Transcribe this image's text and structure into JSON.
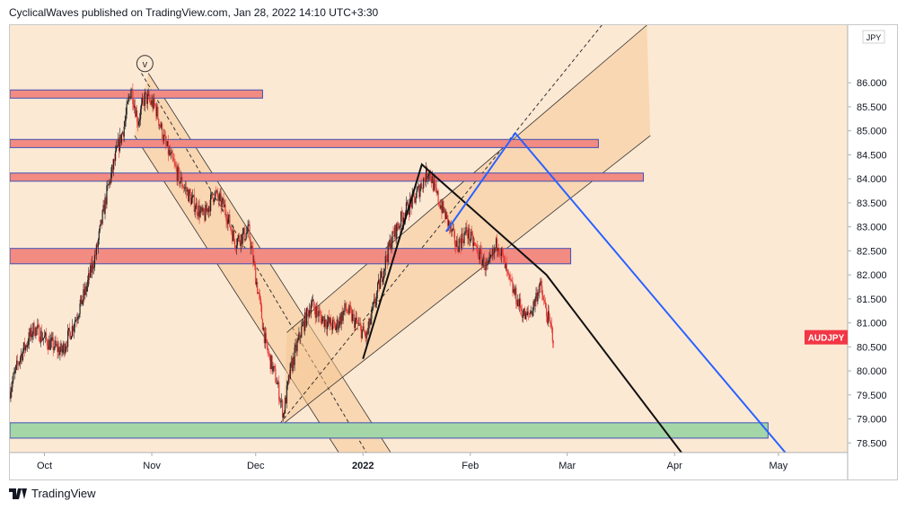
{
  "header": {
    "publish_info": "CyclicalWaves published on TradingView.com, Jan 28, 2022 14:10 UTC+3:30"
  },
  "footer": {
    "brand": "TradingView",
    "logo_icon": "tradingview-logo-icon"
  },
  "chart_data": {
    "type": "candlestick",
    "symbol": "AUDJPY",
    "currency": "JPY",
    "title": "",
    "last_price": 80.7,
    "price_label_color": "#f23645",
    "background": "#fce9d4",
    "ylim": [
      78.3,
      87.2
    ],
    "y_ticks": [
      "86.000",
      "85.500",
      "85.000",
      "84.500",
      "84.000",
      "83.500",
      "83.000",
      "82.500",
      "82.000",
      "81.500",
      "81.000",
      "80.500",
      "80.000",
      "79.500",
      "79.000",
      "78.500"
    ],
    "x_ticks": [
      "Oct",
      "Nov",
      "Dec",
      "2022",
      "Feb",
      "Mar",
      "Apr",
      "May"
    ],
    "x_tick_dates": [
      "2021-10-01",
      "2021-11-01",
      "2021-12-01",
      "2022-01-01",
      "2022-02-01",
      "2022-03-01",
      "2022-04-01",
      "2022-05-01"
    ],
    "xlim": [
      "2021-09-21",
      "2022-05-21"
    ],
    "price_path": [
      [
        "2021-09-21",
        79.6
      ],
      [
        "2021-09-24",
        80.3
      ],
      [
        "2021-09-28",
        80.9
      ],
      [
        "2021-10-02",
        80.6
      ],
      [
        "2021-10-06",
        80.4
      ],
      [
        "2021-10-09",
        80.9
      ],
      [
        "2021-10-13",
        81.7
      ],
      [
        "2021-10-16",
        82.5
      ],
      [
        "2021-10-19",
        83.7
      ],
      [
        "2021-10-22",
        84.6
      ],
      [
        "2021-10-24",
        85.1
      ],
      [
        "2021-10-26",
        85.9
      ],
      [
        "2021-10-28",
        85.2
      ],
      [
        "2021-10-30",
        85.7
      ],
      [
        "2021-11-02",
        85.5
      ],
      [
        "2021-11-05",
        84.7
      ],
      [
        "2021-11-09",
        84.0
      ],
      [
        "2021-11-13",
        83.5
      ],
      [
        "2021-11-16",
        83.2
      ],
      [
        "2021-11-19",
        83.7
      ],
      [
        "2021-11-22",
        83.4
      ],
      [
        "2021-11-25",
        82.7
      ],
      [
        "2021-11-29",
        82.9
      ],
      [
        "2021-12-02",
        81.5
      ],
      [
        "2021-12-04",
        80.5
      ],
      [
        "2021-12-07",
        79.8
      ],
      [
        "2021-12-09",
        79.1
      ],
      [
        "2021-12-11",
        80.0
      ],
      [
        "2021-12-14",
        80.8
      ],
      [
        "2021-12-17",
        81.4
      ],
      [
        "2021-12-20",
        81.1
      ],
      [
        "2021-12-24",
        80.9
      ],
      [
        "2021-12-27",
        81.3
      ],
      [
        "2021-12-30",
        81.0
      ],
      [
        "2022-01-02",
        80.7
      ],
      [
        "2022-01-05",
        81.6
      ],
      [
        "2022-01-09",
        82.7
      ],
      [
        "2022-01-13",
        83.3
      ],
      [
        "2022-01-16",
        83.6
      ],
      [
        "2022-01-18",
        83.9
      ],
      [
        "2022-01-20",
        84.2
      ],
      [
        "2022-01-22",
        83.7
      ],
      [
        "2022-01-25",
        83.2
      ],
      [
        "2022-01-28",
        82.6
      ],
      [
        "2022-01-31",
        82.9
      ],
      [
        "2022-02-03",
        82.5
      ],
      [
        "2022-02-06",
        82.1
      ],
      [
        "2022-02-09",
        82.7
      ],
      [
        "2022-02-12",
        81.9
      ],
      [
        "2022-02-15",
        81.4
      ],
      [
        "2022-02-17",
        81.1
      ],
      [
        "2022-02-19",
        81.3
      ],
      [
        "2022-02-21",
        81.8
      ],
      [
        "2022-02-23",
        81.2
      ],
      [
        "2022-02-25",
        80.7
      ]
    ],
    "zones": [
      {
        "name": "resistance-zone",
        "x0": "2021-09-21",
        "x1": "2021-12-03",
        "y0": 85.85,
        "y1": 85.68,
        "fill": "#f28b82",
        "stroke": "#3f51b5"
      },
      {
        "name": "resistance-zone",
        "x0": "2021-09-21",
        "x1": "2022-03-10",
        "y0": 84.82,
        "y1": 84.65,
        "fill": "#f28b82",
        "stroke": "#3f51b5"
      },
      {
        "name": "resistance-zone",
        "x0": "2021-09-21",
        "x1": "2022-03-23",
        "y0": 84.12,
        "y1": 83.95,
        "fill": "#f28b82",
        "stroke": "#3f51b5"
      },
      {
        "name": "resistance-zone",
        "x0": "2021-09-21",
        "x1": "2022-03-02",
        "y0": 82.55,
        "y1": 82.23,
        "fill": "#f28b82",
        "stroke": "#3f51b5"
      },
      {
        "name": "support-zone",
        "x0": "2021-09-21",
        "x1": "2022-04-28",
        "y0": 78.92,
        "y1": 78.6,
        "fill": "#a5d6a7",
        "stroke": "#3f51b5"
      }
    ],
    "down_channel": {
      "upper": [
        [
          "2021-10-31",
          86.2
        ],
        [
          "2022-01-09",
          78.3
        ]
      ],
      "mid": [
        [
          "2021-10-29",
          86.2
        ],
        [
          "2022-01-02",
          78.3
        ]
      ],
      "lower": [
        [
          "2021-10-27",
          84.9
        ],
        [
          "2021-12-25",
          78.3
        ]
      ]
    },
    "up_channel": {
      "upper": [
        [
          "2021-12-10",
          80.8
        ],
        [
          "2022-03-24",
          87.2
        ]
      ],
      "mid": [
        [
          "2021-12-08",
          78.9
        ],
        [
          "2022-03-11",
          87.2
        ]
      ],
      "lower": [
        [
          "2021-12-09",
          78.9
        ],
        [
          "2022-03-25",
          84.9
        ]
      ]
    },
    "wave_path": [
      [
        "2022-01-01",
        80.25
      ],
      [
        "2022-01-18",
        84.3
      ],
      [
        "2022-02-23",
        82.0
      ],
      [
        "2022-04-03",
        78.3
      ]
    ],
    "blue_path": [
      [
        "2022-01-25",
        82.9
      ],
      [
        "2022-02-14",
        84.95
      ],
      [
        "2022-05-03",
        78.3
      ]
    ],
    "wave_label": {
      "text": "v",
      "x": "2021-10-30",
      "y": 86.4
    }
  }
}
